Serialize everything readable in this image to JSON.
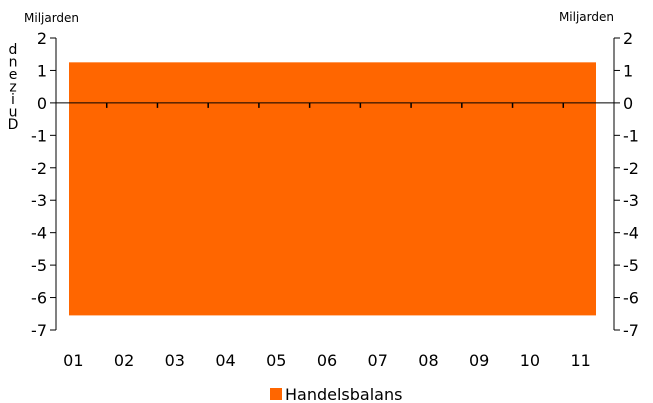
{
  "chart_data": {
    "type": "area",
    "x": [
      "01",
      "02",
      "03",
      "04",
      "05",
      "06",
      "07",
      "08",
      "09",
      "10",
      "11"
    ],
    "series": [
      {
        "name": "Handelsbalans",
        "upper": 1.25,
        "lower": -6.55,
        "color": "#FF6600"
      }
    ],
    "y_left_unit": "Miljarden",
    "y_right_unit": "Miljarden",
    "y_left_title": "Duizend",
    "yticks": [
      "2",
      "1",
      "0",
      "-1",
      "-2",
      "-3",
      "-4",
      "-5",
      "-6",
      "-7"
    ],
    "ylim": [
      -7,
      2
    ],
    "legend_position": "bottom-center",
    "grid": false
  }
}
